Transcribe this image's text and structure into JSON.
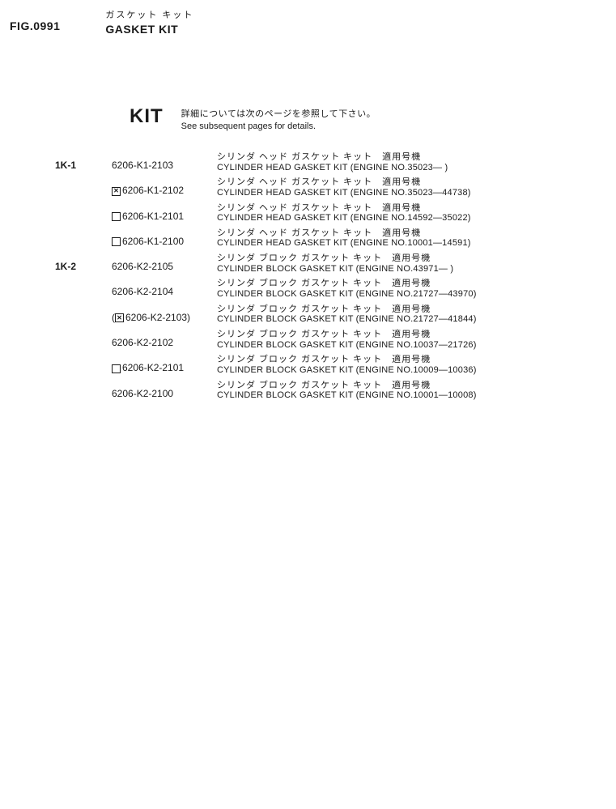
{
  "header": {
    "fig_label": "FIG.0991",
    "title_jp": "ガスケット キット",
    "title_en": "GASKET KIT"
  },
  "kit": {
    "label": "KIT",
    "note_jp": "詳細については次のページを参照して下さい。",
    "note_en": "See subsequent pages for details."
  },
  "rows": [
    {
      "idx": "1K-1",
      "mark": "",
      "pn": "6206-K1-2103",
      "jp": "シリンダ ヘッド ガスケット キット　適用号機",
      "en": "CYLINDER HEAD GASKET KIT (ENGINE NO.35023— )"
    },
    {
      "idx": "",
      "mark": "x",
      "pn": "6206-K1-2102",
      "jp": "シリンダ ヘッド ガスケット キット　適用号機",
      "en": "CYLINDER HEAD GASKET KIT (ENGINE NO.35023—44738)"
    },
    {
      "idx": "",
      "mark": "box",
      "pn": "6206-K1-2101",
      "jp": "シリンダ ヘッド ガスケット キット　適用号機",
      "en": "CYLINDER HEAD GASKET KIT (ENGINE NO.14592—35022)"
    },
    {
      "idx": "",
      "mark": "box",
      "pn": "6206-K1-2100",
      "jp": "シリンダ ヘッド ガスケット キット　適用号機",
      "en": "CYLINDER HEAD GASKET KIT (ENGINE NO.10001—14591)"
    },
    {
      "idx": "1K-2",
      "mark": "",
      "pn": "6206-K2-2105",
      "jp": "シリンダ ブロック ガスケット キット　適用号機",
      "en": "CYLINDER BLOCK GASKET KIT (ENGINE NO.43971— )"
    },
    {
      "idx": "",
      "mark": "",
      "pn": "6206-K2-2104",
      "jp": "シリンダ ブロック ガスケット キット　適用号機",
      "en": "CYLINDER BLOCK GASKET KIT (ENGINE NO.21727—43970)"
    },
    {
      "idx": "",
      "mark": "px",
      "pn": "(6206-K2-2103)",
      "paren": true,
      "jp": "シリンダ ブロック ガスケット キット　適用号機",
      "en": "CYLINDER BLOCK GASKET KIT (ENGINE NO.21727—41844)"
    },
    {
      "idx": "",
      "mark": "",
      "pn": "6206-K2-2102",
      "jp": "シリンダ ブロック ガスケット キット　適用号機",
      "en": "CYLINDER BLOCK GASKET KIT (ENGINE NO.10037—21726)"
    },
    {
      "idx": "",
      "mark": "box",
      "pn": "6206-K2-2101",
      "jp": "シリンダ ブロック ガスケット キット　適用号機",
      "en": "CYLINDER BLOCK GASKET KIT (ENGINE NO.10009—10036)"
    },
    {
      "idx": "",
      "mark": "",
      "pn": "6206-K2-2100",
      "jp": "シリンダ ブロック ガスケット キット　適用号機",
      "en": "CYLINDER BLOCK GASKET KIT (ENGINE NO.10001—10008)"
    }
  ]
}
